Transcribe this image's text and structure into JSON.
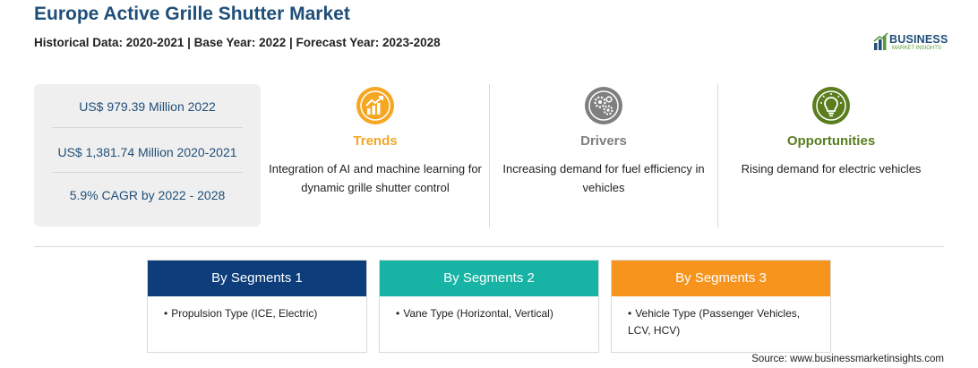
{
  "header": {
    "title": "Europe Active Grille Shutter Market",
    "subtitle": "Historical Data: 2020-2021 | Base Year: 2022 | Forecast Year: 2023-2028"
  },
  "logo": {
    "name": "BUSINESS",
    "tagline": "MARKET INSIGHTS"
  },
  "stats": [
    "US$ 979.39 Million 2022",
    "US$ 1,381.74 Million 2020-2021",
    "5.9% CAGR by 2022 - 2028"
  ],
  "columns": [
    {
      "icon": "trends-chart-icon",
      "color": "#f5a623",
      "heading": "Trends",
      "text": "Integration of AI and machine learning for dynamic grille shutter control"
    },
    {
      "icon": "gears-icon",
      "color": "#7f7f7f",
      "heading": "Drivers",
      "text": "Increasing demand for fuel efficiency in vehicles"
    },
    {
      "icon": "lightbulb-icon",
      "color": "#5a7d1e",
      "heading": "Opportunities",
      "text": "Rising demand for electric vehicles"
    }
  ],
  "segments": [
    {
      "title": "By Segments 1",
      "color": "#0d3d7a",
      "items": [
        "Propulsion Type (ICE, Electric)"
      ]
    },
    {
      "title": "By Segments 2",
      "color": "#17b3a5",
      "items": [
        "Vane Type (Horizontal, Vertical)"
      ]
    },
    {
      "title": "By Segments 3",
      "color": "#f7941d",
      "items": [
        "Vehicle Type (Passenger Vehicles, LCV, HCV)"
      ]
    }
  ],
  "source": "Source: www.businessmarketinsights.com"
}
